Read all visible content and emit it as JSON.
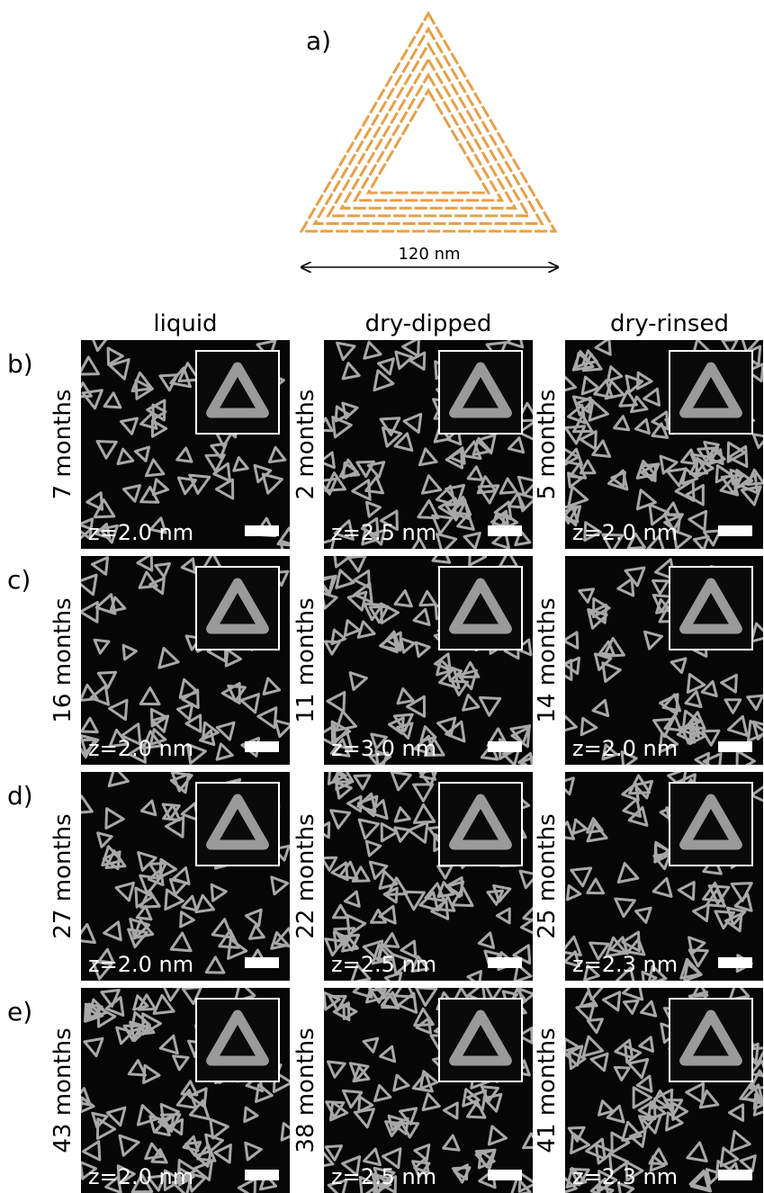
{
  "figure": {
    "panel_label": "a)",
    "scale_label": "120 nm",
    "columns": [
      "liquid",
      "dry-dipped",
      "dry-rinsed"
    ],
    "rows": [
      {
        "label": "b)",
        "cells": [
          {
            "age": "7 months",
            "z": "z=2.0 nm"
          },
          {
            "age": "2 months",
            "z": "z=2.5 nm"
          },
          {
            "age": "5 months",
            "z": "z=2.0 nm"
          }
        ]
      },
      {
        "label": "c)",
        "cells": [
          {
            "age": "16 months",
            "z": "z=2.0 nm"
          },
          {
            "age": "11 months",
            "z": "z=3.0 nm"
          },
          {
            "age": "14 months",
            "z": "z=2.0 nm"
          }
        ]
      },
      {
        "label": "d)",
        "cells": [
          {
            "age": "27 months",
            "z": "z=2.0 nm"
          },
          {
            "age": "22 months",
            "z": "z=2.5 nm"
          },
          {
            "age": "25 months",
            "z": "z=2.3 nm"
          }
        ]
      },
      {
        "label": "e)",
        "cells": [
          {
            "age": "43 months",
            "z": "z=2.0 nm"
          },
          {
            "age": "38 months",
            "z": "z=2.5 nm"
          },
          {
            "age": "41 months",
            "z": "z=2.3 nm"
          }
        ]
      }
    ]
  }
}
